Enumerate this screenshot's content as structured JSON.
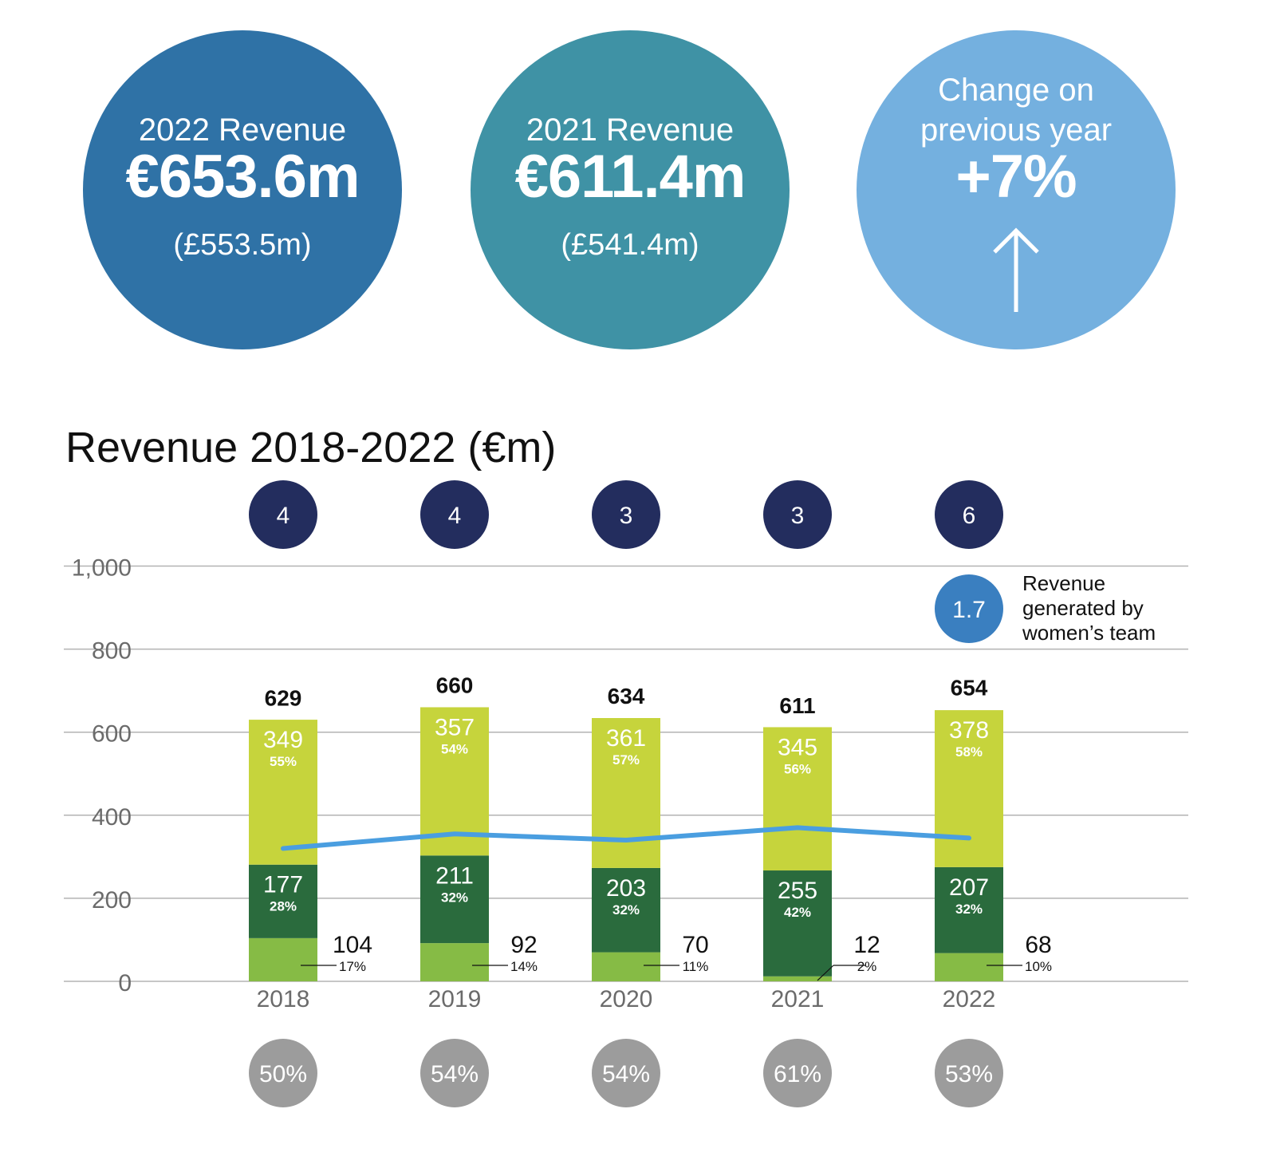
{
  "kpis": [
    {
      "label": "2022 Revenue",
      "value": "€653.6m",
      "sub": "(£553.5m)",
      "color": "#2f72a6"
    },
    {
      "label": "2021 Revenue",
      "value": "€611.4m",
      "sub": "(£541.4m)",
      "color": "#3f92a5"
    },
    {
      "label": "Change on previous year",
      "value": "+7%",
      "icon": "up-arrow-icon",
      "color": "#74b0df"
    }
  ],
  "chart_data": {
    "type": "bar",
    "title": "Revenue 2018-2022 (€m)",
    "categories": [
      "2018",
      "2019",
      "2020",
      "2021",
      "2022"
    ],
    "ylim": [
      0,
      1000
    ],
    "yticks": [
      "0",
      "200",
      "400",
      "600",
      "800",
      "1,000"
    ],
    "grid": true,
    "totals": [
      629,
      660,
      634,
      611,
      654
    ],
    "series": [
      {
        "values": [
          104,
          92,
          70,
          12,
          68
        ],
        "percents": [
          "17%",
          "14%",
          "11%",
          "2%",
          "10%"
        ],
        "color": "#86bb45"
      },
      {
        "values": [
          177,
          211,
          203,
          255,
          207
        ],
        "percents": [
          "28%",
          "32%",
          "32%",
          "42%",
          "32%"
        ],
        "color": "#2a6b3d"
      },
      {
        "values": [
          349,
          357,
          361,
          345,
          378
        ],
        "percents": [
          "55%",
          "54%",
          "57%",
          "56%",
          "58%"
        ],
        "color": "#c6d43c"
      }
    ],
    "line": {
      "values": [
        320,
        355,
        340,
        370,
        345
      ],
      "color": "#4a9ee0"
    },
    "top_badges": [
      "4",
      "4",
      "3",
      "3",
      "6"
    ],
    "top_badge_color": "#232d5e",
    "bottom_badges": [
      "50%",
      "54%",
      "54%",
      "61%",
      "53%"
    ],
    "bottom_badge_color": "#9c9c9c",
    "legend": {
      "value": "1.7",
      "text": [
        "Revenue",
        "generated by",
        "women’s team"
      ],
      "color": "#3a7fc0",
      "position": "top-right"
    }
  }
}
